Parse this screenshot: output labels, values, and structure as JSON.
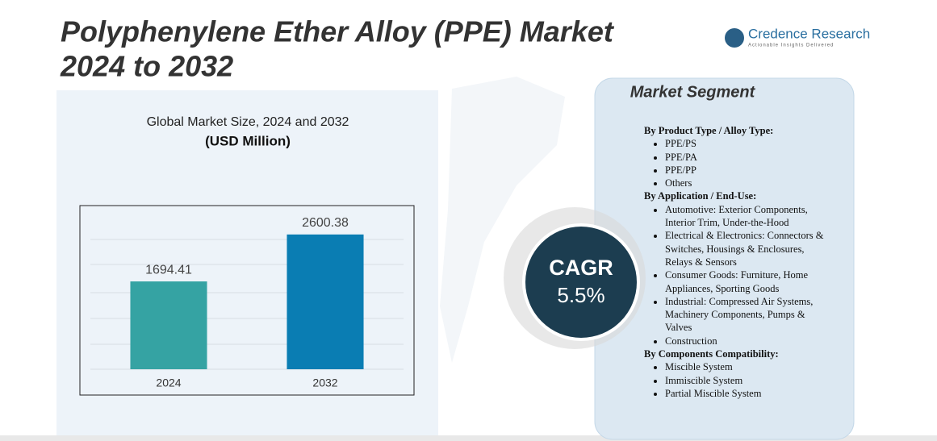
{
  "header": {
    "title": [
      "Polyphenylene Ether Alloy (PPE) Market",
      "2024 to 2032"
    ],
    "logo": "Credence Research",
    "tagline": "Actionable Insights Delivered"
  },
  "chart_data": {
    "type": "bar",
    "title": "Global Market Size, 2024 and 2032",
    "subtitle": "(USD Million)",
    "categories": [
      "2024",
      "2032"
    ],
    "series": [
      {
        "name": "Market Size",
        "colors": [
          "#35a3a3",
          "#0a7db3"
        ],
        "values": [
          1694.41,
          2600.38
        ]
      }
    ],
    "ylim": [
      0,
      2800
    ]
  },
  "cagr": {
    "label": "CAGR",
    "value": "5.5%"
  },
  "segments": {
    "title": "Market Segment",
    "groups": [
      {
        "heading": "By Product Type / Alloy Type:",
        "items": [
          "PPE/PS",
          "PPE/PA",
          "PPE/PP",
          "Others"
        ]
      },
      {
        "heading": "By Application / End-Use:",
        "items": [
          "Automotive: Exterior Components, Interior Trim, Under-the-Hood",
          "Electrical & Electronics: Connectors & Switches, Housings & Enclosures, Relays & Sensors",
          "Consumer Goods: Furniture, Home Appliances, Sporting Goods",
          "Industrial: Compressed Air Systems, Machinery Components, Pumps & Valves",
          "Construction"
        ]
      },
      {
        "heading": "By Components Compatibility:",
        "items": [
          "Miscible System",
          "Immiscible System",
          "Partial Miscible System"
        ]
      }
    ]
  }
}
